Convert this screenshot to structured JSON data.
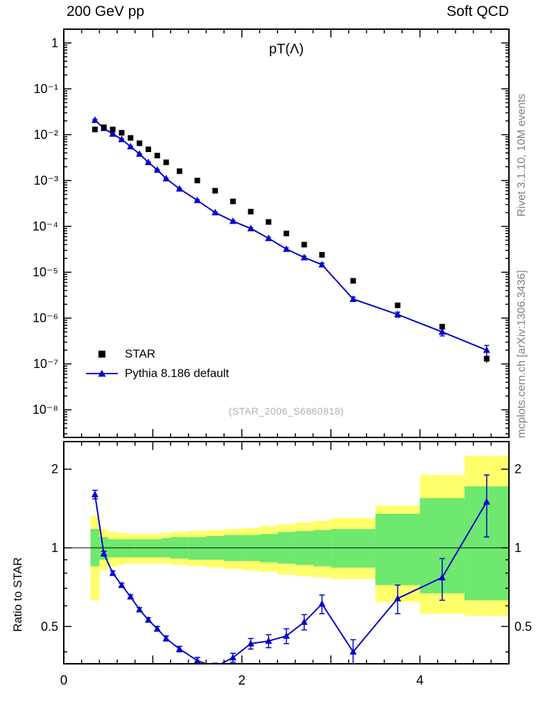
{
  "header": {
    "left": "200 GeV pp",
    "right": "Soft QCD"
  },
  "side_notes": {
    "top": "Rivet 3.1.10,  10M events",
    "bottom": "mcplots.cern.ch [arXiv:1306.3436]"
  },
  "watermark": "(STAR_2006_S6860818)",
  "colors": {
    "star": "#000000",
    "pythia": "#0000cc",
    "band_outer": "#ffff6b",
    "band_inner": "#6ee86e",
    "frame": "#000000",
    "side_text": "#808080",
    "watermark": "#b0b0b0"
  },
  "chart_data": [
    {
      "type": "scatter",
      "title": "pT(Λ)",
      "xlabel": "",
      "ylabel": "",
      "xlim": [
        0,
        5.0
      ],
      "ylog": true,
      "ylim": [
        2.5e-09,
        2.0
      ],
      "legend_position": "bottom-left",
      "x_ticks": [
        {
          "v": 0,
          "label": "0"
        },
        {
          "v": 2,
          "label": "2"
        },
        {
          "v": 4,
          "label": "4"
        }
      ],
      "y_ticks": [
        {
          "v": 1,
          "label": "1"
        },
        {
          "v": 0.1,
          "label": "10⁻¹"
        },
        {
          "v": 0.01,
          "label": "10⁻²"
        },
        {
          "v": 0.001,
          "label": "10⁻³"
        },
        {
          "v": 0.0001,
          "label": "10⁻⁴"
        },
        {
          "v": 1e-05,
          "label": "10⁻⁵"
        },
        {
          "v": 1e-06,
          "label": "10⁻⁶"
        },
        {
          "v": 1e-07,
          "label": "10⁻⁷"
        },
        {
          "v": 1e-08,
          "label": "10⁻⁸"
        }
      ],
      "x": [
        0.35,
        0.45,
        0.55,
        0.65,
        0.75,
        0.85,
        0.95,
        1.05,
        1.15,
        1.3,
        1.5,
        1.7,
        1.9,
        2.1,
        2.3,
        2.5,
        2.7,
        2.9,
        3.25,
        3.75,
        4.25,
        4.75
      ],
      "series": [
        {
          "name": "STAR",
          "marker": "square",
          "color": "#000000",
          "line": false,
          "y": [
            0.013,
            0.0145,
            0.013,
            0.011,
            0.0085,
            0.0065,
            0.0048,
            0.0035,
            0.0025,
            0.0016,
            0.001,
            0.0006,
            0.00035,
            0.00021,
            0.000125,
            7e-05,
            4e-05,
            2.4e-05,
            6.5e-06,
            1.9e-06,
            6.5e-07,
            1.3e-07
          ],
          "yerr_rel": [
            0.02,
            0.015,
            0.015,
            0.015,
            0.015,
            0.015,
            0.015,
            0.015,
            0.015,
            0.015,
            0.015,
            0.02,
            0.02,
            0.025,
            0.03,
            0.035,
            0.04,
            0.05,
            0.06,
            0.08,
            0.12,
            0.18
          ]
        },
        {
          "name": "Pythia 8.186 default",
          "marker": "triangle",
          "color": "#0000cc",
          "line": true,
          "y": [
            0.0208,
            0.0138,
            0.0104,
            0.0079,
            0.0055,
            0.0038,
            0.0025,
            0.0017,
            0.0011,
            0.00066,
            0.00037,
            0.0002,
            0.00013,
            9e-05,
            5.5e-05,
            3.2e-05,
            2.1e-05,
            1.46e-05,
            2.6e-06,
            1.2e-06,
            5e-07,
            2e-07
          ],
          "yerr_rel": [
            0.04,
            0.021,
            0.019,
            0.017,
            0.016,
            0.017,
            0.019,
            0.02,
            0.022,
            0.025,
            0.028,
            0.035,
            0.04,
            0.047,
            0.057,
            0.065,
            0.067,
            0.082,
            0.112,
            0.125,
            0.18,
            0.27
          ]
        }
      ]
    },
    {
      "type": "ratio-line",
      "ylabel": "Ratio to STAR",
      "reference_series": "STAR",
      "xlim": [
        0,
        5.0
      ],
      "ylog": true,
      "ylim": [
        0.36,
        2.55
      ],
      "reference_line": 1,
      "y_ticks": [
        {
          "v": 0.5,
          "label": "0.5"
        },
        {
          "v": 1,
          "label": "1"
        },
        {
          "v": 2,
          "label": "2"
        }
      ],
      "x": [
        0.35,
        0.45,
        0.55,
        0.65,
        0.75,
        0.85,
        0.95,
        1.05,
        1.15,
        1.3,
        1.5,
        1.7,
        1.9,
        2.1,
        2.3,
        2.5,
        2.7,
        2.9,
        3.25,
        3.75,
        4.25,
        4.75
      ],
      "values": [
        1.6,
        0.95,
        0.8,
        0.72,
        0.65,
        0.58,
        0.53,
        0.49,
        0.45,
        0.41,
        0.37,
        0.35,
        0.38,
        0.43,
        0.44,
        0.46,
        0.52,
        0.61,
        0.4,
        0.64,
        0.77,
        1.5
      ],
      "yerr": [
        0.06,
        0.02,
        0.015,
        0.012,
        0.011,
        0.01,
        0.01,
        0.01,
        0.01,
        0.01,
        0.011,
        0.012,
        0.015,
        0.02,
        0.025,
        0.03,
        0.035,
        0.05,
        0.045,
        0.08,
        0.14,
        0.4
      ],
      "bands": {
        "edges": [
          0.3,
          0.4,
          0.5,
          0.6,
          0.7,
          0.8,
          0.9,
          1.0,
          1.1,
          1.2,
          1.4,
          1.6,
          1.8,
          2.0,
          2.2,
          2.4,
          2.6,
          2.8,
          3.0,
          3.5,
          4.0,
          4.5,
          5.0
        ],
        "outer": {
          "color": "#ffff6b",
          "lo": [
            0.63,
            0.82,
            0.85,
            0.86,
            0.87,
            0.87,
            0.87,
            0.87,
            0.87,
            0.86,
            0.85,
            0.84,
            0.83,
            0.82,
            0.81,
            0.79,
            0.78,
            0.77,
            0.76,
            0.62,
            0.56,
            0.55
          ],
          "hi": [
            1.33,
            1.18,
            1.15,
            1.14,
            1.13,
            1.13,
            1.13,
            1.13,
            1.14,
            1.15,
            1.16,
            1.17,
            1.18,
            1.19,
            1.21,
            1.23,
            1.25,
            1.27,
            1.3,
            1.45,
            1.9,
            2.25
          ]
        },
        "inner": {
          "color": "#6ee86e",
          "lo": [
            0.85,
            0.9,
            0.92,
            0.92,
            0.92,
            0.92,
            0.92,
            0.92,
            0.92,
            0.91,
            0.9,
            0.9,
            0.89,
            0.89,
            0.88,
            0.87,
            0.86,
            0.85,
            0.84,
            0.72,
            0.67,
            0.63
          ],
          "hi": [
            1.18,
            1.1,
            1.08,
            1.08,
            1.08,
            1.08,
            1.08,
            1.08,
            1.09,
            1.1,
            1.1,
            1.11,
            1.12,
            1.12,
            1.13,
            1.15,
            1.16,
            1.17,
            1.18,
            1.35,
            1.55,
            1.72
          ]
        }
      }
    }
  ]
}
